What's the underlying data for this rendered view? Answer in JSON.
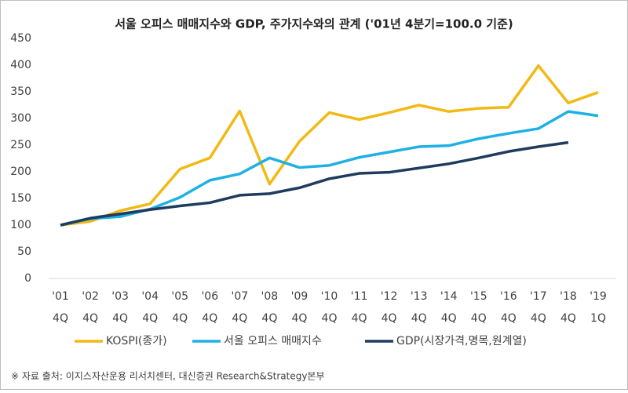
{
  "chart_data": {
    "type": "line",
    "title": "서울 오피스 매매지수와 GDP, 주가지수와의 관계 ('01년 4분기=100.0 기준)",
    "categories": [
      [
        "'01",
        "4Q"
      ],
      [
        "'02",
        "4Q"
      ],
      [
        "'03",
        "4Q"
      ],
      [
        "'04",
        "4Q"
      ],
      [
        "'05",
        "4Q"
      ],
      [
        "'06",
        "4Q"
      ],
      [
        "'07",
        "4Q"
      ],
      [
        "'08",
        "4Q"
      ],
      [
        "'09",
        "4Q"
      ],
      [
        "'10",
        "4Q"
      ],
      [
        "'11",
        "4Q"
      ],
      [
        "'12",
        "4Q"
      ],
      [
        "'13",
        "4Q"
      ],
      [
        "'14",
        "4Q"
      ],
      [
        "'15",
        "4Q"
      ],
      [
        "'16",
        "4Q"
      ],
      [
        "'17",
        "4Q"
      ],
      [
        "'18",
        "4Q"
      ],
      [
        "'19",
        "1Q"
      ]
    ],
    "series": [
      {
        "name": "KOSPI(종가)",
        "color": "#f2b915",
        "values": [
          100,
          107,
          127,
          140,
          205,
          226,
          314,
          177,
          257,
          311,
          298,
          311,
          325,
          313,
          319,
          321,
          399,
          329,
          349
        ]
      },
      {
        "name": "서울 오피스 매매지수",
        "color": "#1fb0e4",
        "values": [
          100,
          112,
          116,
          130,
          152,
          184,
          196,
          226,
          208,
          212,
          227,
          237,
          247,
          249,
          262,
          272,
          281,
          313,
          305
        ]
      },
      {
        "name": "GDP(시장가격,명목,원계열)",
        "color": "#1f3b5e",
        "values": [
          100,
          113,
          121,
          129,
          136,
          142,
          156,
          159,
          170,
          187,
          197,
          199,
          207,
          215,
          226,
          238,
          247,
          255,
          null
        ]
      }
    ],
    "ylim": [
      0,
      450
    ],
    "yticks": [
      0,
      50,
      100,
      150,
      200,
      250,
      300,
      350,
      400,
      450
    ],
    "footnote": "※ 자료 출처: 이지스자산운용 리서치센터, 대신증권 Research&Strategy본부"
  }
}
